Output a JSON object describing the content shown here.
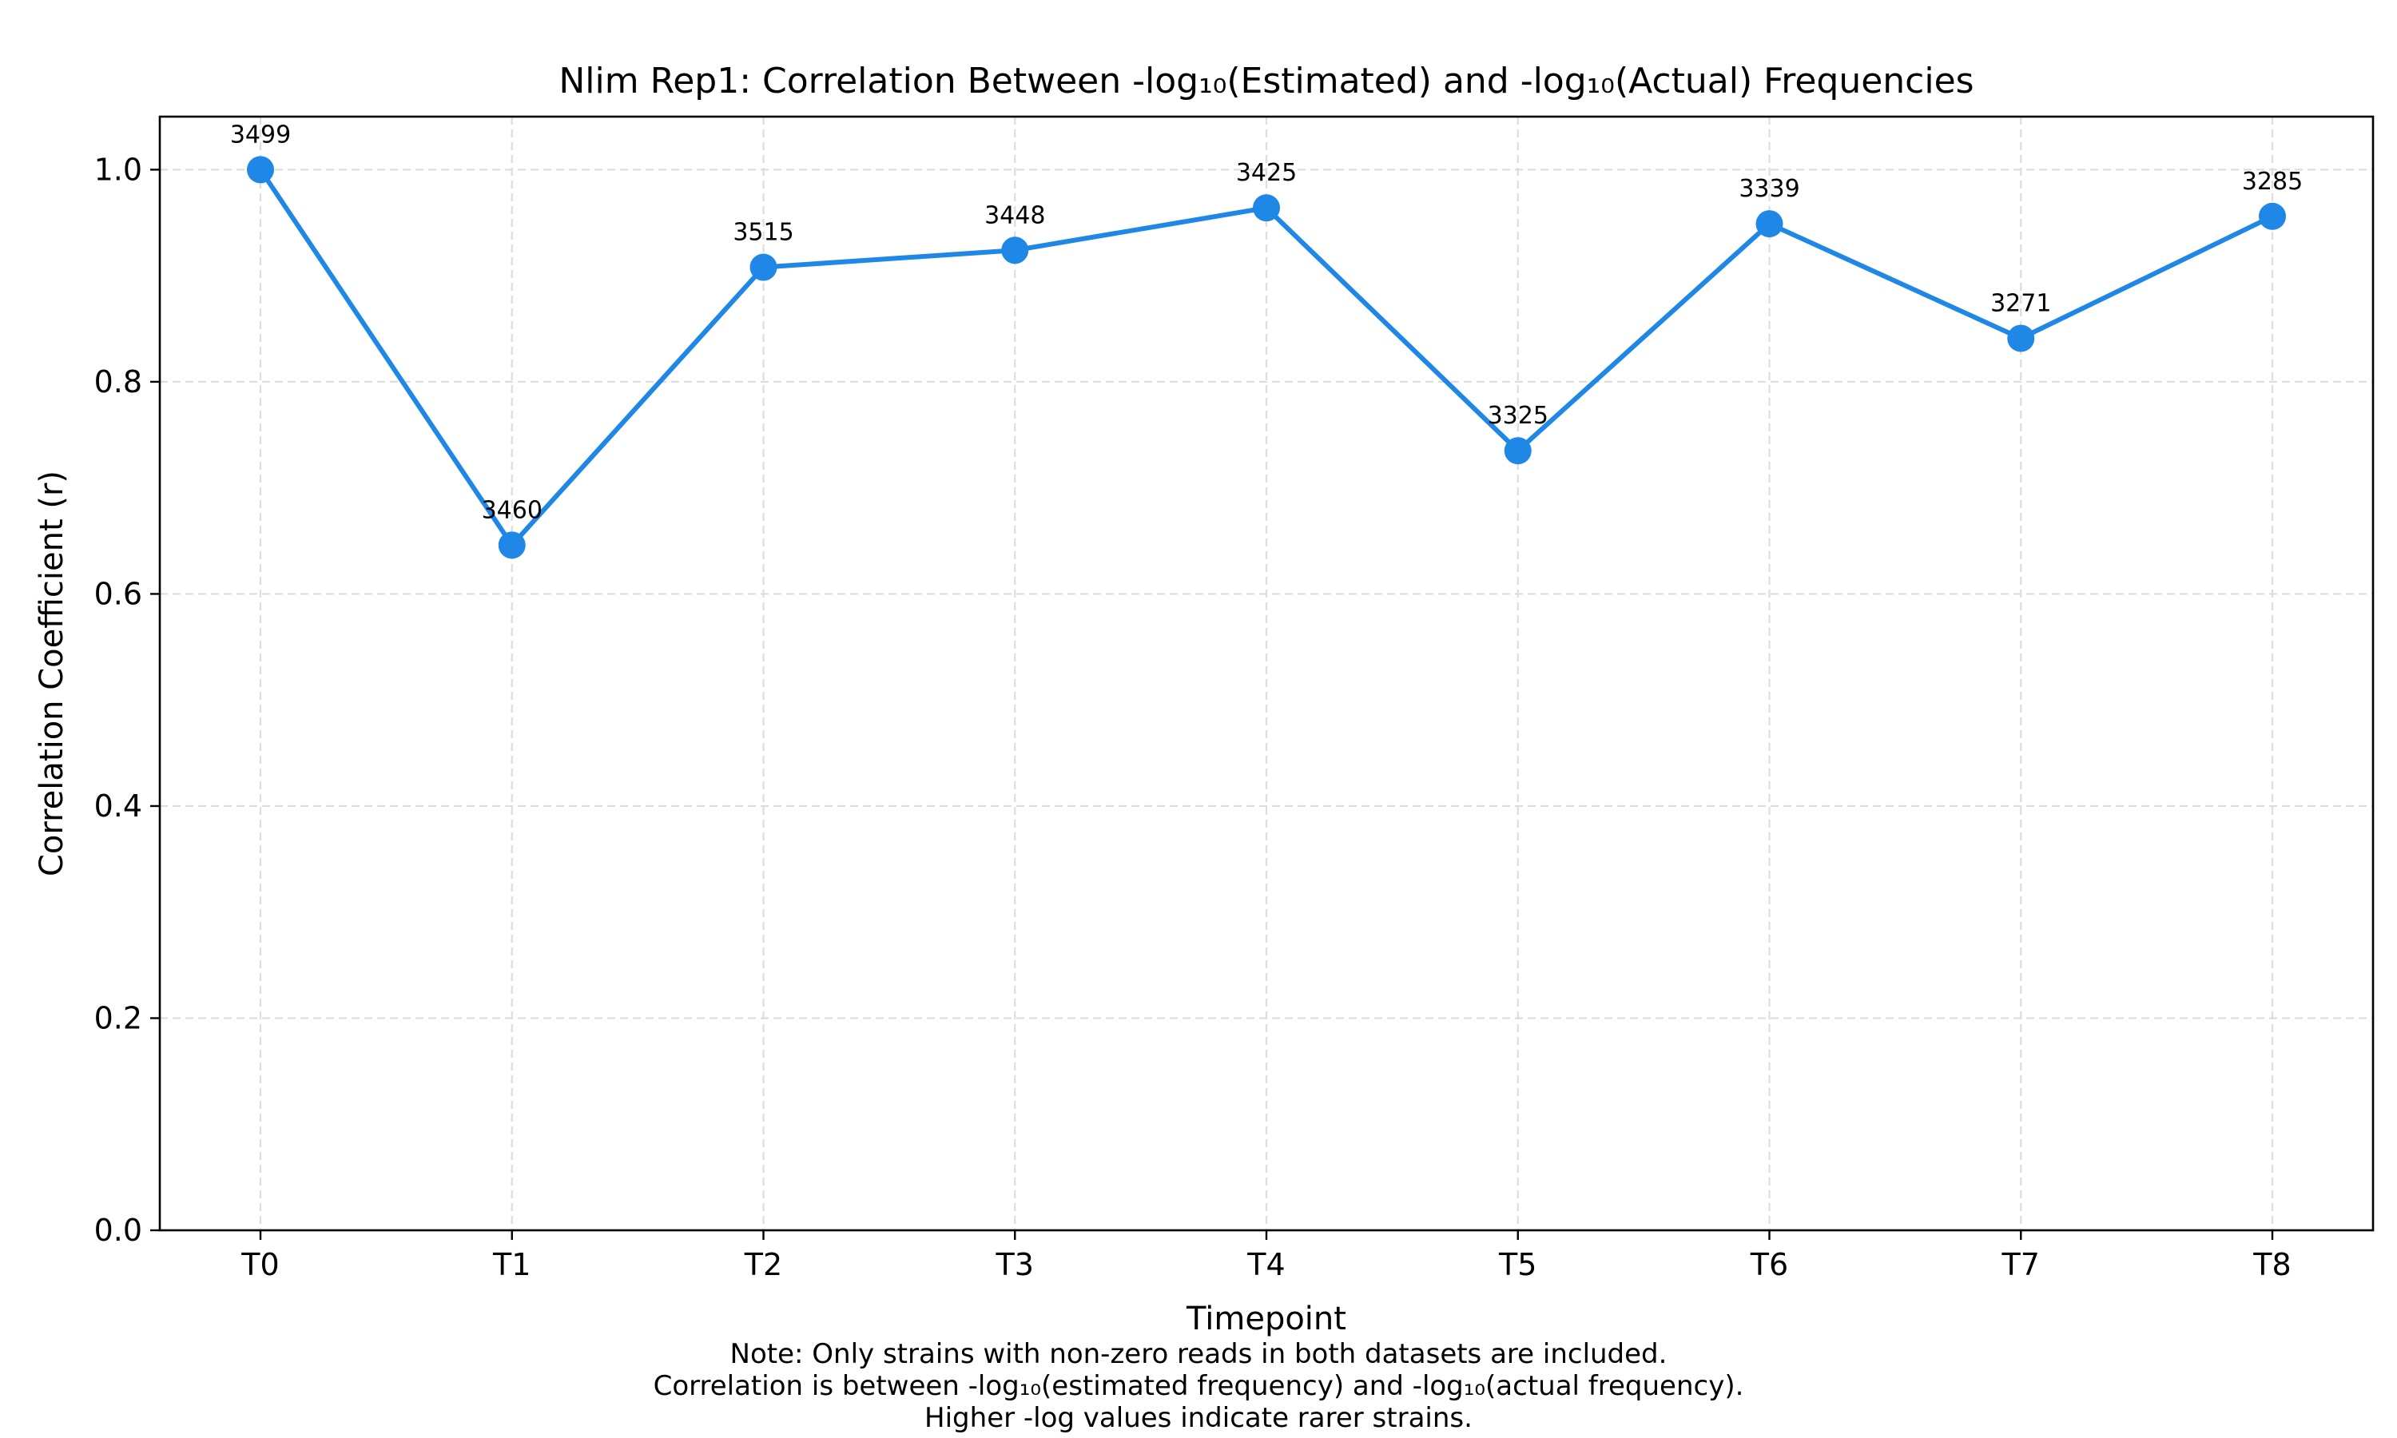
{
  "chart_data": {
    "type": "line",
    "title": "Nlim Rep1: Correlation Between -log₁₀(Estimated) and -log₁₀(Actual) Frequencies",
    "xlabel": "Timepoint",
    "ylabel": "Correlation Coefficient (r)",
    "categories": [
      "T0",
      "T1",
      "T2",
      "T3",
      "T4",
      "T5",
      "T6",
      "T7",
      "T8"
    ],
    "series": [
      {
        "values": [
          1.0,
          0.646,
          0.908,
          0.924,
          0.964,
          0.735,
          0.949,
          0.841,
          0.956
        ],
        "point_labels": [
          "3499",
          "3460",
          "3515",
          "3448",
          "3425",
          "3325",
          "3339",
          "3271",
          "3285"
        ],
        "color": "#1f87e5"
      }
    ],
    "ylim": [
      0.0,
      1.05
    ],
    "yticks": [
      "0.0",
      "0.2",
      "0.4",
      "0.6",
      "0.8",
      "1.0"
    ],
    "grid": true,
    "notes": [
      "Note: Only strains with non-zero reads in both datasets are included.",
      "Correlation is between -log₁₀(estimated frequency) and -log₁₀(actual frequency).",
      "Higher -log values indicate rarer strains."
    ]
  }
}
